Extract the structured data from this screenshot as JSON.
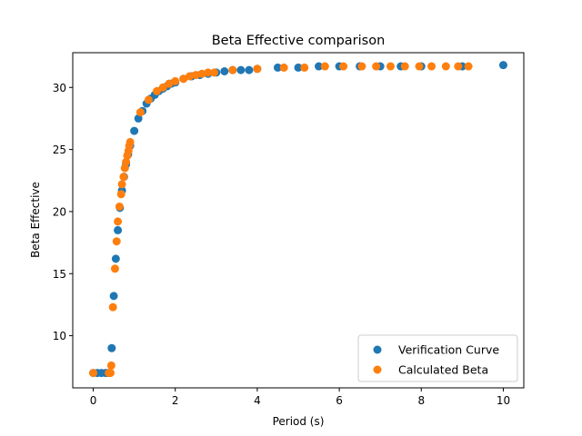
{
  "chart_data": {
    "type": "scatter",
    "title": "Beta Effective comparison",
    "xlabel": "Period (s)",
    "ylabel": "Beta Effective",
    "xlim": [
      -0.5,
      10.5
    ],
    "ylim": [
      5.8,
      32.8
    ],
    "xticks": [
      0,
      2,
      4,
      6,
      8,
      10
    ],
    "yticks": [
      10,
      15,
      20,
      25,
      30
    ],
    "grid": false,
    "legend_position": "lower-right",
    "series": [
      {
        "name": "Verification Curve",
        "color": "#1f77b4",
        "points": [
          [
            0.0,
            7.0
          ],
          [
            0.1,
            7.0
          ],
          [
            0.2,
            7.0
          ],
          [
            0.3,
            7.0
          ],
          [
            0.35,
            7.0
          ],
          [
            0.4,
            7.0
          ],
          [
            0.45,
            9.0
          ],
          [
            0.5,
            13.2
          ],
          [
            0.55,
            16.2
          ],
          [
            0.6,
            18.5
          ],
          [
            0.65,
            20.3
          ],
          [
            0.7,
            21.7
          ],
          [
            0.75,
            22.8
          ],
          [
            0.8,
            23.8
          ],
          [
            0.85,
            24.6
          ],
          [
            0.9,
            25.3
          ],
          [
            1.0,
            26.5
          ],
          [
            1.1,
            27.5
          ],
          [
            1.2,
            28.1
          ],
          [
            1.3,
            28.7
          ],
          [
            1.4,
            29.1
          ],
          [
            1.5,
            29.4
          ],
          [
            1.6,
            29.7
          ],
          [
            1.7,
            29.9
          ],
          [
            1.8,
            30.1
          ],
          [
            1.9,
            30.3
          ],
          [
            2.0,
            30.4
          ],
          [
            2.2,
            30.7
          ],
          [
            2.4,
            30.9
          ],
          [
            2.6,
            31.0
          ],
          [
            2.8,
            31.1
          ],
          [
            3.0,
            31.2
          ],
          [
            3.2,
            31.3
          ],
          [
            3.4,
            31.4
          ],
          [
            3.6,
            31.4
          ],
          [
            3.8,
            31.4
          ],
          [
            4.0,
            31.5
          ],
          [
            4.5,
            31.6
          ],
          [
            5.0,
            31.6
          ],
          [
            5.5,
            31.7
          ],
          [
            6.0,
            31.7
          ],
          [
            6.5,
            31.7
          ],
          [
            7.0,
            31.7
          ],
          [
            7.5,
            31.7
          ],
          [
            8.0,
            31.7
          ],
          [
            9.0,
            31.7
          ],
          [
            10.0,
            31.8
          ]
        ]
      },
      {
        "name": "Calculated Beta",
        "color": "#ff7f0e",
        "points": [
          [
            0.0,
            7.0
          ],
          [
            0.38,
            7.0
          ],
          [
            0.42,
            7.0
          ],
          [
            0.44,
            7.6
          ],
          [
            0.48,
            12.3
          ],
          [
            0.53,
            15.4
          ],
          [
            0.57,
            17.6
          ],
          [
            0.6,
            19.2
          ],
          [
            0.64,
            20.4
          ],
          [
            0.68,
            21.4
          ],
          [
            0.7,
            22.2
          ],
          [
            0.74,
            22.8
          ],
          [
            0.77,
            23.5
          ],
          [
            0.8,
            24.0
          ],
          [
            0.83,
            24.5
          ],
          [
            0.86,
            24.9
          ],
          [
            0.88,
            25.3
          ],
          [
            0.9,
            25.6
          ],
          [
            1.15,
            28.0
          ],
          [
            1.35,
            29.0
          ],
          [
            1.55,
            29.7
          ],
          [
            1.7,
            30.0
          ],
          [
            1.85,
            30.3
          ],
          [
            2.0,
            30.5
          ],
          [
            2.2,
            30.7
          ],
          [
            2.35,
            30.9
          ],
          [
            2.5,
            31.0
          ],
          [
            2.65,
            31.1
          ],
          [
            2.8,
            31.2
          ],
          [
            2.95,
            31.2
          ],
          [
            3.4,
            31.4
          ],
          [
            4.0,
            31.5
          ],
          [
            4.65,
            31.6
          ],
          [
            5.15,
            31.6
          ],
          [
            5.65,
            31.7
          ],
          [
            6.1,
            31.7
          ],
          [
            6.55,
            31.7
          ],
          [
            6.9,
            31.7
          ],
          [
            7.25,
            31.7
          ],
          [
            7.6,
            31.7
          ],
          [
            7.95,
            31.7
          ],
          [
            8.25,
            31.7
          ],
          [
            8.6,
            31.7
          ],
          [
            8.9,
            31.7
          ],
          [
            9.15,
            31.7
          ]
        ]
      }
    ]
  }
}
